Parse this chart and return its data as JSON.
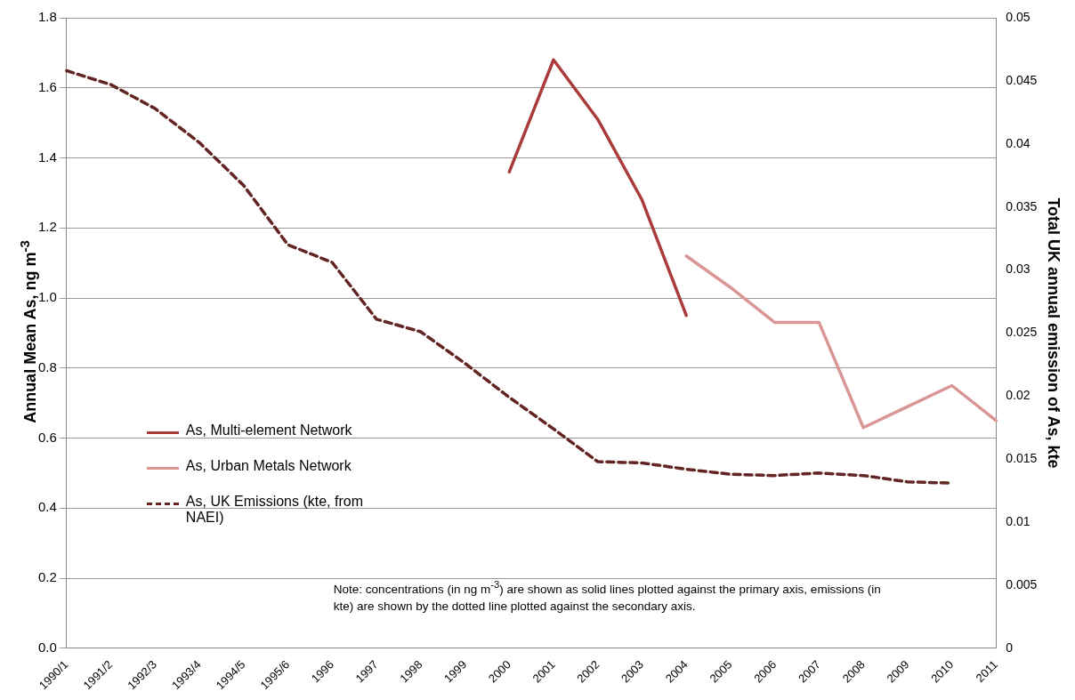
{
  "chart_data": {
    "type": "line",
    "ylabel": "Annual Mean As, ng m$^{-3}$",
    "y2label": "Total UK annual emission of As, kte",
    "categories": [
      "1990/1",
      "1991/2",
      "1992/3",
      "1993/4",
      "1994/5",
      "1995/6",
      "1996",
      "1997",
      "1998",
      "1999",
      "2000",
      "2001",
      "2002",
      "2003",
      "2004",
      "2005",
      "2006",
      "2007",
      "2008",
      "2009",
      "2010",
      "2011"
    ],
    "series": [
      {
        "name": "As, Multi-element Network",
        "color": "#a93c3a",
        "line_style": "solid",
        "values": [
          null,
          null,
          null,
          null,
          null,
          null,
          null,
          null,
          null,
          null,
          1.36,
          1.68,
          1.51,
          1.28,
          0.95,
          null,
          null,
          null,
          null,
          null,
          null,
          null
        ]
      },
      {
        "name": "As, Urban Metals Network",
        "color": "#d99694",
        "line_style": "solid",
        "values": [
          null,
          null,
          null,
          null,
          null,
          null,
          null,
          null,
          null,
          null,
          null,
          null,
          null,
          null,
          1.12,
          1.03,
          0.93,
          0.93,
          0.63,
          0.69,
          0.75,
          0.65
        ]
      },
      {
        "name": "As, UK Emissions (kte, from NAEI)",
        "color": "#632523",
        "line_style": "dashed",
        "axis": "y2",
        "values": [
          0.0458,
          0.0447,
          0.0428,
          0.0401,
          0.0367,
          0.032,
          0.0306,
          0.0261,
          0.0251,
          0.0226,
          0.0199,
          0.0174,
          0.0148,
          0.0147,
          0.0142,
          0.0138,
          0.0137,
          0.0139,
          0.0137,
          0.0132,
          0.0131,
          null
        ]
      }
    ],
    "ylim": [
      0,
      1.8
    ],
    "yticks": [
      {
        "value": 0,
        "label": "0.0"
      },
      0.2,
      0.4,
      0.6,
      0.8,
      {
        "value": 1,
        "label": "1.0"
      },
      1.2,
      1.4,
      1.6,
      1.8
    ],
    "y2lim": [
      0,
      0.05
    ],
    "y2ticks": [
      0,
      0.005,
      0.01,
      0.015,
      0.02,
      0.025,
      0.03,
      0.035,
      0.04,
      0.045,
      0.05
    ],
    "grid": "y",
    "legend": "left",
    "marker": "none",
    "annotations": [
      "Note: concentrations (in ng m$^{-3}$) are shown as solid lines plotted against the primary axis, emissions (in kte) are shown by the dotted line plotted against the secondary axis."
    ]
  }
}
